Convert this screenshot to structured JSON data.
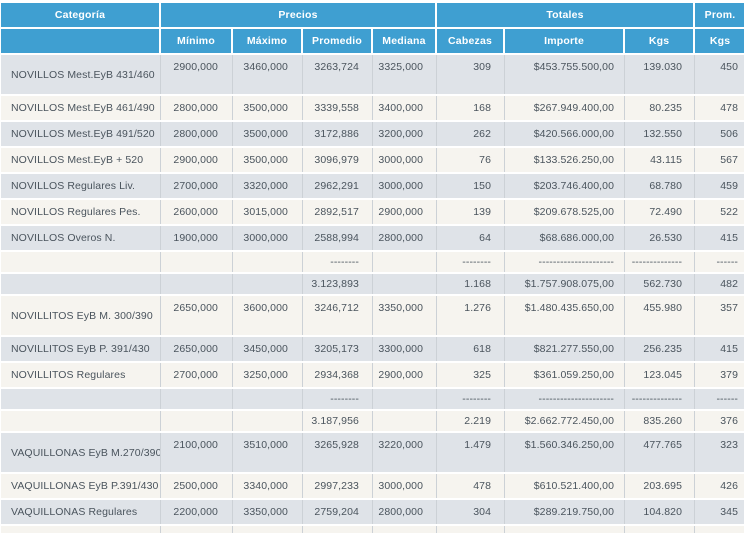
{
  "table": {
    "header": {
      "categoria": "Categoría",
      "precios": "Precios",
      "totales": "Totales",
      "prom": "Prom.",
      "sub": [
        "Mínimo",
        "Máximo",
        "Promedio",
        "Mediana",
        "Cabezas",
        "Importe",
        "Kgs",
        "Kgs"
      ]
    },
    "colors": {
      "header_bg": "#3f9fd1",
      "row_gray": "#dfe3e8",
      "row_cream": "#f6f4ef",
      "text": "#4a545d"
    },
    "rows": [
      {
        "type": "data",
        "tall": true,
        "categoria": "NOVILLOS Mest.EyB 431/460",
        "minimo": "2900,000",
        "maximo": "3460,000",
        "promedio": "3263,724",
        "mediana": "3325,000",
        "cabezas": "309",
        "importe": "$453.755.500,00",
        "kgs": "139.030",
        "prom_kgs": "450"
      },
      {
        "type": "data",
        "tall": false,
        "categoria": "NOVILLOS Mest.EyB 461/490",
        "minimo": "2800,000",
        "maximo": "3500,000",
        "promedio": "3339,558",
        "mediana": "3400,000",
        "cabezas": "168",
        "importe": "$267.949.400,00",
        "kgs": "80.235",
        "prom_kgs": "478"
      },
      {
        "type": "data",
        "tall": false,
        "categoria": "NOVILLOS Mest.EyB 491/520",
        "minimo": "2800,000",
        "maximo": "3500,000",
        "promedio": "3172,886",
        "mediana": "3200,000",
        "cabezas": "262",
        "importe": "$420.566.000,00",
        "kgs": "132.550",
        "prom_kgs": "506"
      },
      {
        "type": "data",
        "tall": false,
        "categoria": "NOVILLOS Mest.EyB + 520",
        "minimo": "2900,000",
        "maximo": "3500,000",
        "promedio": "3096,979",
        "mediana": "3000,000",
        "cabezas": "76",
        "importe": "$133.526.250,00",
        "kgs": "43.115",
        "prom_kgs": "567"
      },
      {
        "type": "data",
        "tall": false,
        "categoria": "NOVILLOS Regulares Liv.",
        "minimo": "2700,000",
        "maximo": "3320,000",
        "promedio": "2962,291",
        "mediana": "3000,000",
        "cabezas": "150",
        "importe": "$203.746.400,00",
        "kgs": "68.780",
        "prom_kgs": "459"
      },
      {
        "type": "data",
        "tall": false,
        "categoria": "NOVILLOS Regulares Pes.",
        "minimo": "2600,000",
        "maximo": "3015,000",
        "promedio": "2892,517",
        "mediana": "2900,000",
        "cabezas": "139",
        "importe": "$209.678.525,00",
        "kgs": "72.490",
        "prom_kgs": "522"
      },
      {
        "type": "data",
        "tall": false,
        "categoria": "NOVILLOS Overos N.",
        "minimo": "1900,000",
        "maximo": "3000,000",
        "promedio": "2588,994",
        "mediana": "2800,000",
        "cabezas": "64",
        "importe": "$68.686.000,00",
        "kgs": "26.530",
        "prom_kgs": "415"
      },
      {
        "type": "dash",
        "tall": false,
        "categoria": "",
        "minimo": "",
        "maximo": "",
        "promedio": "--------",
        "mediana": "",
        "cabezas": "--------",
        "importe": "---------------------",
        "kgs": "--------------",
        "prom_kgs": "------"
      },
      {
        "type": "subtotal",
        "tall": false,
        "categoria": "",
        "minimo": "",
        "maximo": "",
        "promedio": "3.123,893",
        "mediana": "",
        "cabezas": "1.168",
        "importe": "$1.757.908.075,00",
        "kgs": "562.730",
        "prom_kgs": "482"
      },
      {
        "type": "data",
        "tall": true,
        "categoria": "NOVILLITOS EyB M. 300/390",
        "minimo": "2650,000",
        "maximo": "3600,000",
        "promedio": "3246,712",
        "mediana": "3350,000",
        "cabezas": "1.276",
        "importe": "$1.480.435.650,00",
        "kgs": "455.980",
        "prom_kgs": "357"
      },
      {
        "type": "data",
        "tall": false,
        "categoria": "NOVILLITOS EyB P. 391/430",
        "minimo": "2650,000",
        "maximo": "3450,000",
        "promedio": "3205,173",
        "mediana": "3300,000",
        "cabezas": "618",
        "importe": "$821.277.550,00",
        "kgs": "256.235",
        "prom_kgs": "415"
      },
      {
        "type": "data",
        "tall": false,
        "categoria": "NOVILLITOS Regulares",
        "minimo": "2700,000",
        "maximo": "3250,000",
        "promedio": "2934,368",
        "mediana": "2900,000",
        "cabezas": "325",
        "importe": "$361.059.250,00",
        "kgs": "123.045",
        "prom_kgs": "379"
      },
      {
        "type": "dash",
        "tall": false,
        "categoria": "",
        "minimo": "",
        "maximo": "",
        "promedio": "--------",
        "mediana": "",
        "cabezas": "--------",
        "importe": "---------------------",
        "kgs": "--------------",
        "prom_kgs": "------"
      },
      {
        "type": "subtotal",
        "tall": false,
        "categoria": "",
        "minimo": "",
        "maximo": "",
        "promedio": "3.187,956",
        "mediana": "",
        "cabezas": "2.219",
        "importe": "$2.662.772.450,00",
        "kgs": "835.260",
        "prom_kgs": "376"
      },
      {
        "type": "data",
        "tall": true,
        "categoria": "VAQUILLONAS EyB M.270/390",
        "minimo": "2100,000",
        "maximo": "3510,000",
        "promedio": "3265,928",
        "mediana": "3220,000",
        "cabezas": "1.479",
        "importe": "$1.560.346.250,00",
        "kgs": "477.765",
        "prom_kgs": "323"
      },
      {
        "type": "data",
        "tall": false,
        "categoria": "VAQUILLONAS EyB P.391/430",
        "minimo": "2500,000",
        "maximo": "3340,000",
        "promedio": "2997,233",
        "mediana": "3000,000",
        "cabezas": "478",
        "importe": "$610.521.400,00",
        "kgs": "203.695",
        "prom_kgs": "426"
      },
      {
        "type": "data",
        "tall": false,
        "categoria": "VAQUILLONAS Regulares",
        "minimo": "2200,000",
        "maximo": "3350,000",
        "promedio": "2759,204",
        "mediana": "2800,000",
        "cabezas": "304",
        "importe": "$289.219.750,00",
        "kgs": "104.820",
        "prom_kgs": "345"
      },
      {
        "type": "dash",
        "tall": false,
        "categoria": "",
        "minimo": "",
        "maximo": "",
        "promedio": "--------",
        "mediana": "",
        "cabezas": "--------",
        "importe": "---------------------",
        "kgs": "--------------",
        "prom_kgs": "------"
      }
    ]
  }
}
